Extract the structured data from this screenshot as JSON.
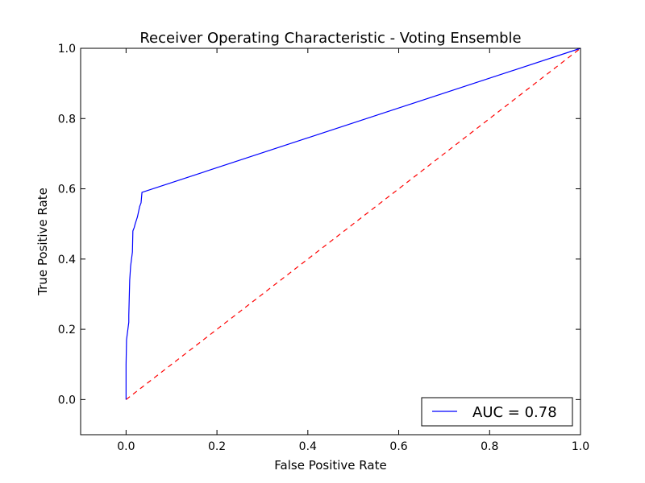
{
  "chart_data": {
    "type": "line",
    "title": "Receiver Operating Characteristic - Voting Ensemble",
    "xlabel": "False Positive Rate",
    "ylabel": "True Positive Rate",
    "xlim": [
      -0.1,
      1.0
    ],
    "ylim": [
      -0.1,
      1.0
    ],
    "x_ticks": [
      0.0,
      0.2,
      0.4,
      0.6,
      0.8,
      1.0
    ],
    "x_tick_labels": [
      "0.0",
      "0.2",
      "0.4",
      "0.6",
      "0.8",
      "1.0"
    ],
    "y_ticks": [
      0.0,
      0.2,
      0.4,
      0.6,
      0.8,
      1.0
    ],
    "y_tick_labels": [
      "0.0",
      "0.2",
      "0.4",
      "0.6",
      "0.8",
      "1.0"
    ],
    "grid": false,
    "legend_position": "lower-right",
    "series": [
      {
        "name": "AUC = 0.78",
        "color": "#0000ff",
        "style": "solid",
        "x": [
          0.0,
          0.0,
          0.001,
          0.003,
          0.004,
          0.006,
          0.006,
          0.008,
          0.009,
          0.01,
          0.011,
          0.014,
          0.015,
          0.018,
          0.02,
          0.025,
          0.03,
          0.033,
          0.035,
          1.0
        ],
        "y": [
          0.0,
          0.1,
          0.17,
          0.19,
          0.2,
          0.22,
          0.24,
          0.34,
          0.36,
          0.38,
          0.39,
          0.42,
          0.48,
          0.49,
          0.5,
          0.52,
          0.55,
          0.56,
          0.59,
          1.0
        ]
      },
      {
        "name": "",
        "color": "#ff0000",
        "style": "dashed",
        "x": [
          0.0,
          1.0
        ],
        "y": [
          0.0,
          1.0
        ]
      }
    ]
  }
}
